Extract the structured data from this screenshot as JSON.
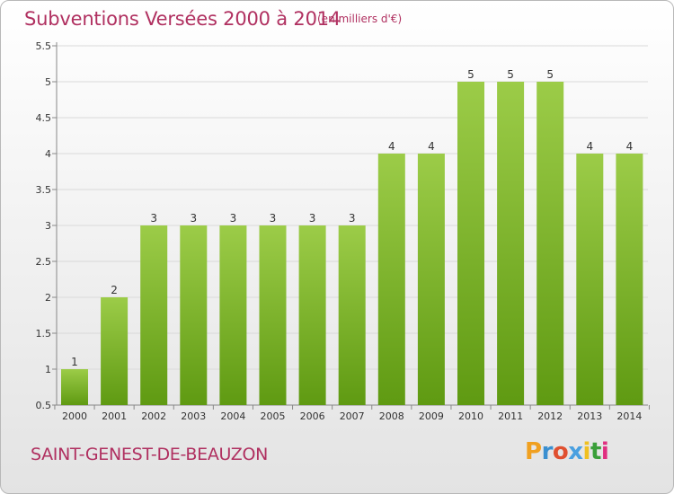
{
  "header": {
    "title": "Subventions Versées 2000 à 2014",
    "subtitle": "(en milliers d'€)"
  },
  "footer": {
    "city": "SAINT-GENEST-DE-BEAUZON",
    "logo_text": "Proxiti"
  },
  "colors": {
    "title": "#b03060",
    "bar_light": "#9ccc48",
    "bar_dark": "#5f9a12",
    "logo": [
      "#f0a020",
      "#3a8fd0",
      "#e05030",
      "#4aa0e0",
      "#f0c020",
      "#3a9f3a",
      "#e03080"
    ]
  },
  "chart_data": {
    "type": "bar",
    "title": "Subventions Versées 2000 à 2014",
    "xlabel": "",
    "ylabel": "",
    "ylim": [
      0.5,
      5.5
    ],
    "yticks": [
      "0.5",
      "1",
      "1.5",
      "2",
      "2.5",
      "3",
      "3.5",
      "4",
      "4.5",
      "5",
      "5.5"
    ],
    "grid": true,
    "categories": [
      "2000",
      "2001",
      "2002",
      "2003",
      "2004",
      "2005",
      "2006",
      "2007",
      "2008",
      "2009",
      "2010",
      "2011",
      "2012",
      "2013",
      "2014"
    ],
    "values": [
      1,
      2,
      3,
      3,
      3,
      3,
      3,
      3,
      4,
      4,
      5,
      5,
      5,
      4,
      4
    ],
    "data_labels": [
      "1",
      "2",
      "3",
      "3",
      "3",
      "3",
      "3",
      "3",
      "4",
      "4",
      "5",
      "5",
      "5",
      "4",
      "4"
    ]
  }
}
